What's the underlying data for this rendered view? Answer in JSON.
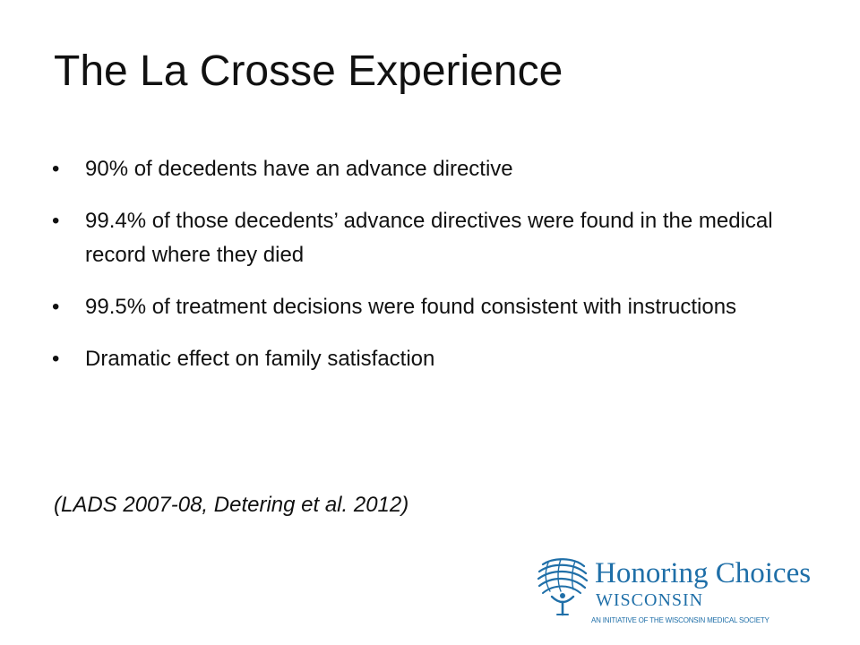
{
  "slide": {
    "title": "The La Crosse Experience",
    "bullet_glyph": "•",
    "bullets": [
      {
        "text": "90% of decedents have an advance directive"
      },
      {
        "text": "99.4% of those decedents’ advance directives were found in the medical record where they died"
      },
      {
        "text": "99.5% of treatment decisions were found consistent with instructions"
      },
      {
        "text": "Dramatic effect on family satisfaction"
      }
    ],
    "citation": "(LADS 2007-08, Detering et al. 2012)"
  },
  "logo": {
    "name": "Honoring Choices",
    "state": "WISCONSIN",
    "tagline": "AN INITIATIVE OF THE WISCONSIN MEDICAL SOCIETY",
    "icon": "globe-figure-icon",
    "color": "#1f6fa8"
  }
}
